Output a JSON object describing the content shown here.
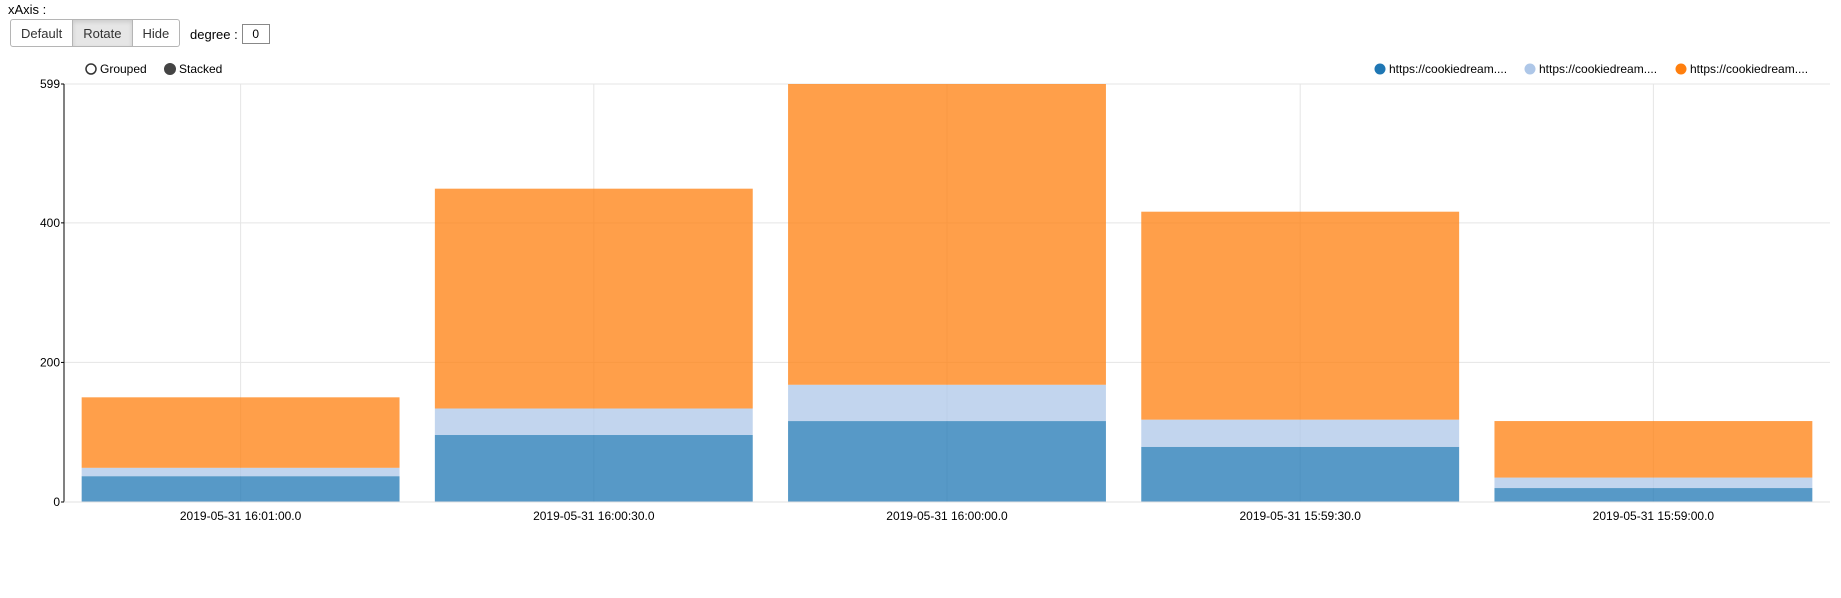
{
  "controls": {
    "xaxis_label": "xAxis :",
    "buttons": [
      "Default",
      "Rotate",
      "Hide"
    ],
    "active_button": "Rotate",
    "degree_label": "degree :",
    "degree_value": "0"
  },
  "chart_data": {
    "type": "bar",
    "mode": "stacked",
    "mode_options": [
      "Grouped",
      "Stacked"
    ],
    "selected_mode": "Stacked",
    "categories": [
      "2019-05-31 16:01:00.0",
      "2019-05-31 16:00:30.0",
      "2019-05-31 16:00:00.0",
      "2019-05-31 15:59:30.0",
      "2019-05-31 15:59:00.0"
    ],
    "series": [
      {
        "name": "https://cookiedream....",
        "color": "#1f77b4",
        "values": [
          37,
          96,
          116,
          79,
          20
        ]
      },
      {
        "name": "https://cookiedream....",
        "color": "#aec7e8",
        "values": [
          12,
          38,
          52,
          39,
          15
        ]
      },
      {
        "name": "https://cookiedream....",
        "color": "#ff7f0e",
        "values": [
          101,
          315,
          431,
          298,
          81
        ]
      }
    ],
    "ylim": [
      0,
      599
    ],
    "yticks": [
      "0",
      "200",
      "400",
      "599"
    ],
    "grid": true,
    "legend_position": "top-right"
  }
}
